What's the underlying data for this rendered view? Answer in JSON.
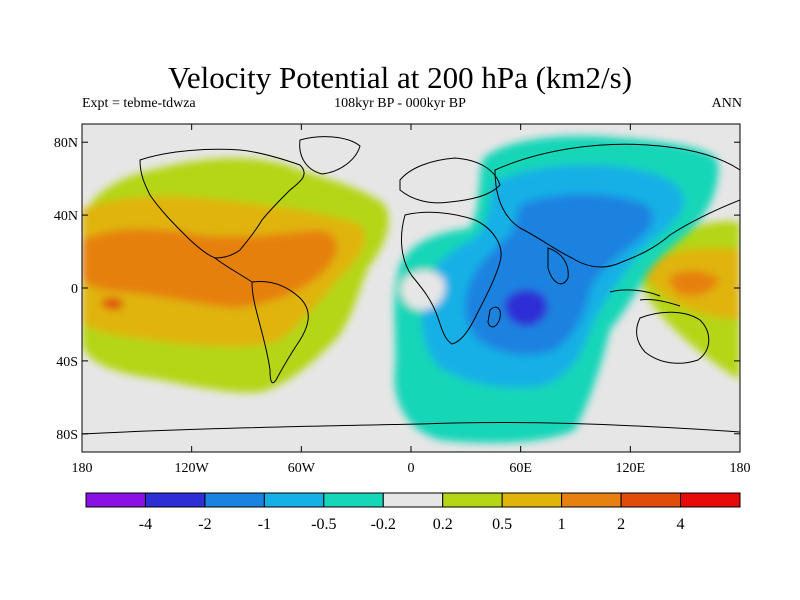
{
  "chart_data": {
    "type": "heatmap",
    "title": "Velocity Potential at 200 hPa (km2/s)",
    "subtitle_left": "Expt = tebme-tdwza",
    "subtitle_center": "108kyr BP - 000kyr BP",
    "subtitle_right": "ANN",
    "xlim": [
      -180,
      180
    ],
    "ylim": [
      -90,
      90
    ],
    "x_ticks": [
      {
        "value": -180,
        "label": "180"
      },
      {
        "value": -120,
        "label": "120W"
      },
      {
        "value": -60,
        "label": "60W"
      },
      {
        "value": 0,
        "label": "0"
      },
      {
        "value": 60,
        "label": "60E"
      },
      {
        "value": 120,
        "label": "120E"
      },
      {
        "value": 180,
        "label": "180"
      }
    ],
    "y_ticks": [
      {
        "value": 80,
        "label": "80N"
      },
      {
        "value": 40,
        "label": "40N"
      },
      {
        "value": 0,
        "label": "0"
      },
      {
        "value": -40,
        "label": "40S"
      },
      {
        "value": -80,
        "label": "80S"
      }
    ],
    "colorbar": {
      "colors": [
        "#8a10e6",
        "#2e2ed6",
        "#1a82e0",
        "#14b0e6",
        "#14d6b8",
        "#e6e6e6",
        "#b4d614",
        "#e0b40a",
        "#e68010",
        "#e04c0a",
        "#e60a0a"
      ],
      "levels": [
        "-4",
        "-2",
        "-1",
        "-0.5",
        "-0.2",
        "0.2",
        "0.5",
        "1",
        "2",
        "4"
      ]
    },
    "field_regions": [
      {
        "name": "positive-pacific-americas",
        "level": "0.2 to 0.5",
        "lon_range": [
          -180,
          -15
        ],
        "lat_range": [
          -45,
          55
        ]
      },
      {
        "name": "positive-maximum-east-pacific",
        "level": "2 to 4",
        "lon_range": [
          -130,
          -90
        ],
        "lat_range": [
          0,
          25
        ]
      },
      {
        "name": "negative-africa-indian-ocean",
        "level": "-0.5 to -0.2",
        "lon_range": [
          -10,
          120
        ],
        "lat_range": [
          -70,
          80
        ]
      },
      {
        "name": "negative-minimum-indian-ocean",
        "level": "-4 to -2",
        "lon_range": [
          55,
          75
        ],
        "lat_range": [
          -22,
          -8
        ]
      },
      {
        "name": "positive-west-pacific",
        "level": "1 to 2",
        "lon_range": [
          125,
          180
        ],
        "lat_range": [
          -30,
          15
        ]
      }
    ]
  }
}
